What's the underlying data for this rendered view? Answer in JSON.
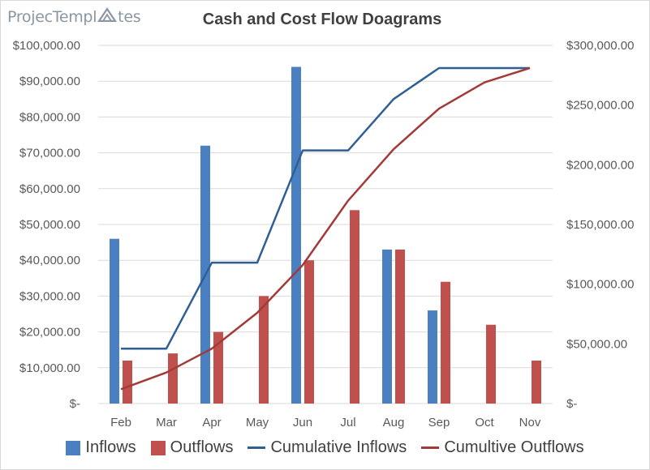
{
  "logo": {
    "text_before": "ProjecTempl",
    "text_after": "tes"
  },
  "colors": {
    "inflows": "#4a7fc1",
    "outflows": "#c0504d",
    "cum_inflows": "#2f5f94",
    "cum_outflows": "#a33a37",
    "grid": "#d9d9d9"
  },
  "chart_data": {
    "type": "bar",
    "title": "Cash and Cost Flow Doagrams",
    "categories": [
      "Feb",
      "Mar",
      "Apr",
      "May",
      "Jun",
      "Jul",
      "Aug",
      "Sep",
      "Oct",
      "Nov"
    ],
    "series": [
      {
        "name": "Inflows",
        "kind": "bar",
        "axis": "left",
        "values": [
          46000,
          0,
          72000,
          0,
          94000,
          0,
          43000,
          26000,
          0,
          0
        ]
      },
      {
        "name": "Outflows",
        "kind": "bar",
        "axis": "left",
        "values": [
          12000,
          14000,
          20000,
          30000,
          40000,
          54000,
          43000,
          34000,
          22000,
          12000
        ]
      },
      {
        "name": "Cumulative Inflows",
        "kind": "line",
        "axis": "right",
        "values": [
          46000,
          46000,
          118000,
          118000,
          212000,
          212000,
          255000,
          281000,
          281000,
          281000
        ]
      },
      {
        "name": "Cumultive Outflows",
        "kind": "line",
        "axis": "right",
        "values": [
          12000,
          26000,
          46000,
          76000,
          116000,
          170000,
          213000,
          247000,
          269000,
          281000
        ]
      }
    ],
    "y_left": {
      "min": 0,
      "max": 100000,
      "ticks": [
        "$-",
        "$10,000.00",
        "$20,000.00",
        "$30,000.00",
        "$40,000.00",
        "$50,000.00",
        "$60,000.00",
        "$70,000.00",
        "$80,000.00",
        "$90,000.00",
        "$100,000.00"
      ]
    },
    "y_right": {
      "min": 0,
      "max": 300000,
      "ticks": [
        "$-",
        "$50,000.00",
        "$100,000.00",
        "$150,000.00",
        "$200,000.00",
        "$250,000.00",
        "$300,000.00"
      ]
    },
    "grid": true,
    "legend_position": "bottom"
  }
}
